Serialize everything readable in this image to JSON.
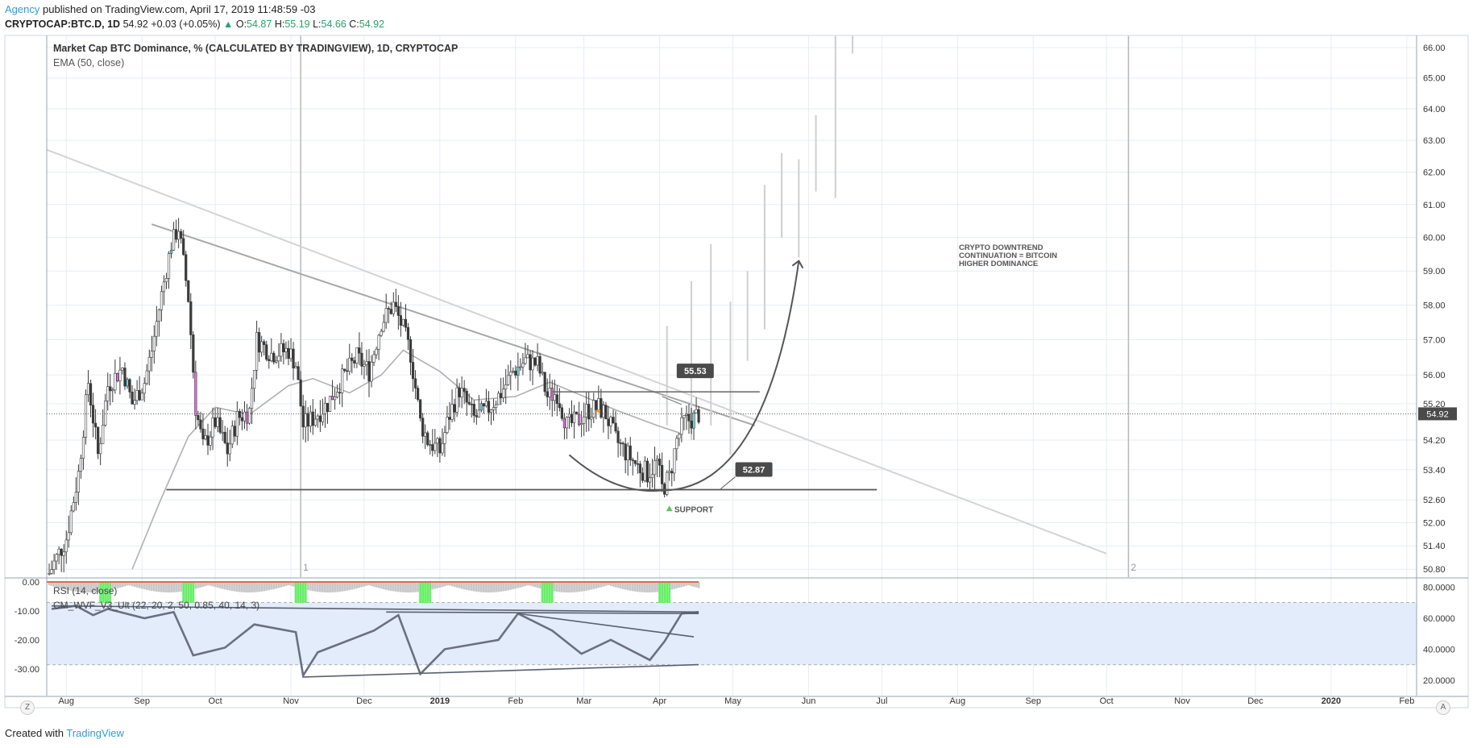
{
  "header": {
    "publisher": "Agency",
    "published_text": "published on TradingView.com, April 17, 2019 11:48:59 -03",
    "symbol": "CRYPTOCAP:BTC.D, 1D",
    "last": "54.92",
    "change": "+0.03 (+0.05%)",
    "change_arrow": "▲",
    "o_label": "O:",
    "o": "54.87",
    "h_label": "H:",
    "h": "55.19",
    "l_label": "L:",
    "l": "54.66",
    "c_label": "C:",
    "c": "54.92"
  },
  "footer": {
    "created_with": "Created with",
    "brand": "TradingView"
  },
  "corner_buttons": {
    "left": "Z",
    "right": "A"
  },
  "colors": {
    "candle": "#3a3a3a",
    "candle_up_hl": "#6fd4d4",
    "candle_down_hl": "#e070e0",
    "ema": "#b0b0b0",
    "trend_light": "#d4d4d4",
    "trend_dark": "#a8a8a8",
    "projection": "#cfcfcf",
    "drawn": "#555555",
    "rsi_line": "#6b7080",
    "rsi_band": "#e3ecfb",
    "hist_grey": "#c8c8c8",
    "hist_green": "#66ee66",
    "hist_red": "#e06a50",
    "grid": "#e6edf5"
  },
  "chart_data": [
    {
      "type": "candlestick",
      "title": "Market Cap BTC Dominance, % (CALCULATED BY TRADINGVIEW), 1D, CRYPTOCAP",
      "indicator": "EMA (50, close)",
      "y_axis_ticks": [
        "66.00",
        "65.00",
        "64.00",
        "63.00",
        "62.00",
        "61.00",
        "60.00",
        "59.00",
        "58.00",
        "57.00",
        "56.00",
        "55.20",
        "54.20",
        "53.40",
        "52.60",
        "52.00",
        "51.40",
        "50.80"
      ],
      "y_axis_scale": "log",
      "x_axis_ticks": [
        "Aug",
        "Sep",
        "Oct",
        "Nov",
        "Dec",
        "2019",
        "Feb",
        "Mar",
        "Apr",
        "May",
        "Jun",
        "Jul",
        "Aug",
        "Sep",
        "Oct",
        "Nov",
        "Dec",
        "2020",
        "Feb"
      ],
      "x_range": [
        "2018-07-24",
        "2020-02-05"
      ],
      "y_range": [
        50.6,
        66.4
      ],
      "last_price": "54.92",
      "series": [
        {
          "name": "Candles",
          "points": [
            [
              "2018-07-25",
              50.7
            ],
            [
              "2018-08-01",
              51.6
            ],
            [
              "2018-08-06",
              53.3
            ],
            [
              "2018-08-10",
              55.8
            ],
            [
              "2018-08-14",
              53.8
            ],
            [
              "2018-08-18",
              55.7
            ],
            [
              "2018-08-24",
              56.2
            ],
            [
              "2018-08-28",
              55.2
            ],
            [
              "2018-09-02",
              55.8
            ],
            [
              "2018-09-05",
              56.7
            ],
            [
              "2018-09-09",
              58.3
            ],
            [
              "2018-09-13",
              59.8
            ],
            [
              "2018-09-16",
              60.3
            ],
            [
              "2018-09-20",
              58.2
            ],
            [
              "2018-09-23",
              55.1
            ],
            [
              "2018-09-26",
              54.0
            ],
            [
              "2018-10-01",
              54.7
            ],
            [
              "2018-10-06",
              53.9
            ],
            [
              "2018-10-10",
              54.8
            ],
            [
              "2018-10-15",
              55.0
            ],
            [
              "2018-10-18",
              57.0
            ],
            [
              "2018-10-24",
              56.6
            ],
            [
              "2018-10-31",
              56.7
            ],
            [
              "2018-11-03",
              56.3
            ],
            [
              "2018-11-06",
              54.6
            ],
            [
              "2018-11-10",
              54.8
            ],
            [
              "2018-11-16",
              55.2
            ],
            [
              "2018-11-22",
              55.9
            ],
            [
              "2018-11-28",
              56.5
            ],
            [
              "2018-12-03",
              56.1
            ],
            [
              "2018-12-08",
              57.5
            ],
            [
              "2018-12-13",
              58.0
            ],
            [
              "2018-12-17",
              57.3
            ],
            [
              "2018-12-20",
              56.6
            ],
            [
              "2018-12-24",
              54.7
            ],
            [
              "2018-12-27",
              54.2
            ],
            [
              "2019-01-01",
              53.9
            ],
            [
              "2019-01-05",
              54.9
            ],
            [
              "2019-01-09",
              55.6
            ],
            [
              "2019-01-15",
              54.8
            ],
            [
              "2019-01-20",
              55.0
            ],
            [
              "2019-01-26",
              55.5
            ],
            [
              "2019-01-31",
              56.1
            ],
            [
              "2019-02-05",
              56.4
            ],
            [
              "2019-02-10",
              56.3
            ],
            [
              "2019-02-14",
              55.4
            ],
            [
              "2019-02-18",
              55.5
            ],
            [
              "2019-02-22",
              54.6
            ],
            [
              "2019-02-26",
              54.7
            ],
            [
              "2019-03-02",
              55.0
            ],
            [
              "2019-03-07",
              55.1
            ],
            [
              "2019-03-10",
              54.9
            ],
            [
              "2019-03-14",
              54.2
            ],
            [
              "2019-03-19",
              53.8
            ],
            [
              "2019-03-23",
              53.5
            ],
            [
              "2019-03-27",
              53.3
            ],
            [
              "2019-03-31",
              53.6
            ],
            [
              "2019-04-02",
              52.9
            ],
            [
              "2019-04-05",
              53.2
            ],
            [
              "2019-04-08",
              54.2
            ],
            [
              "2019-04-11",
              54.7
            ],
            [
              "2019-04-15",
              54.8
            ],
            [
              "2019-04-17",
              54.92
            ]
          ]
        },
        {
          "name": "EMA (50, close)",
          "points": [
            [
              "2018-08-28",
              50.8
            ],
            [
              "2018-09-08",
              52.5
            ],
            [
              "2018-09-20",
              54.3
            ],
            [
              "2018-10-01",
              55.1
            ],
            [
              "2018-10-15",
              54.9
            ],
            [
              "2018-10-31",
              55.7
            ],
            [
              "2018-11-10",
              55.9
            ],
            [
              "2018-11-25",
              55.5
            ],
            [
              "2018-12-08",
              56.0
            ],
            [
              "2018-12-17",
              56.7
            ],
            [
              "2019-01-01",
              56.1
            ],
            [
              "2019-01-15",
              55.3
            ],
            [
              "2019-02-01",
              55.4
            ],
            [
              "2019-02-15",
              55.8
            ],
            [
              "2019-03-01",
              55.4
            ],
            [
              "2019-03-15",
              55.0
            ],
            [
              "2019-03-31",
              54.6
            ],
            [
              "2019-04-09",
              54.4
            ]
          ]
        }
      ],
      "annotations": [
        {
          "text": "55.53",
          "y": 55.53
        },
        {
          "text": "52.87",
          "y": 52.87
        },
        {
          "text": "SUPPORT"
        },
        {
          "text": "CRYPTO DOWNTREND"
        },
        {
          "text": "CONTINUATION = BITCOIN"
        },
        {
          "text": "HIGHER DOMINANCE"
        },
        {
          "text": "1"
        },
        {
          "text": "2"
        }
      ]
    },
    {
      "type": "line",
      "legend": [
        "RSI (14, close)",
        "CM_WVF_V3_Ult (22, 20, 2, 50, 0.85, 40, 14, 3)"
      ],
      "left_axis_ticks": [
        "0.00",
        "-10.00",
        "-20.00",
        "-30.00"
      ],
      "right_axis_ticks": [
        "80.0000",
        "60.0000",
        "40.0000",
        "20.0000"
      ],
      "y_range": [
        10,
        85
      ],
      "band": [
        30,
        70
      ],
      "series": [
        {
          "name": "RSI (14, close)",
          "points": [
            [
              "2018-07-26",
              66
            ],
            [
              "2018-08-05",
              68
            ],
            [
              "2018-08-12",
              62
            ],
            [
              "2018-08-18",
              66
            ],
            [
              "2018-09-02",
              60
            ],
            [
              "2018-09-14",
              64
            ],
            [
              "2018-09-22",
              36
            ],
            [
              "2018-10-05",
              41
            ],
            [
              "2018-10-17",
              56
            ],
            [
              "2018-11-03",
              51
            ],
            [
              "2018-11-06",
              23
            ],
            [
              "2018-11-12",
              38
            ],
            [
              "2018-12-05",
              52
            ],
            [
              "2018-12-15",
              62
            ],
            [
              "2018-12-24",
              24
            ],
            [
              "2019-01-03",
              40
            ],
            [
              "2019-01-25",
              46
            ],
            [
              "2019-02-02",
              63
            ],
            [
              "2019-02-16",
              52
            ],
            [
              "2019-02-28",
              37
            ],
            [
              "2019-03-12",
              46
            ],
            [
              "2019-03-28",
              33
            ],
            [
              "2019-04-03",
              45
            ],
            [
              "2019-04-10",
              63
            ],
            [
              "2019-04-17",
              64
            ]
          ]
        },
        {
          "name": "CM_WVF_V3_Ult histogram",
          "points": [
            [
              "2018-08-17",
              -3
            ],
            [
              "2018-09-20",
              -4
            ],
            [
              "2018-11-05",
              -2
            ],
            [
              "2018-12-26",
              -3
            ],
            [
              "2019-02-14",
              -1
            ],
            [
              "2019-04-03",
              -1
            ]
          ]
        }
      ]
    }
  ]
}
